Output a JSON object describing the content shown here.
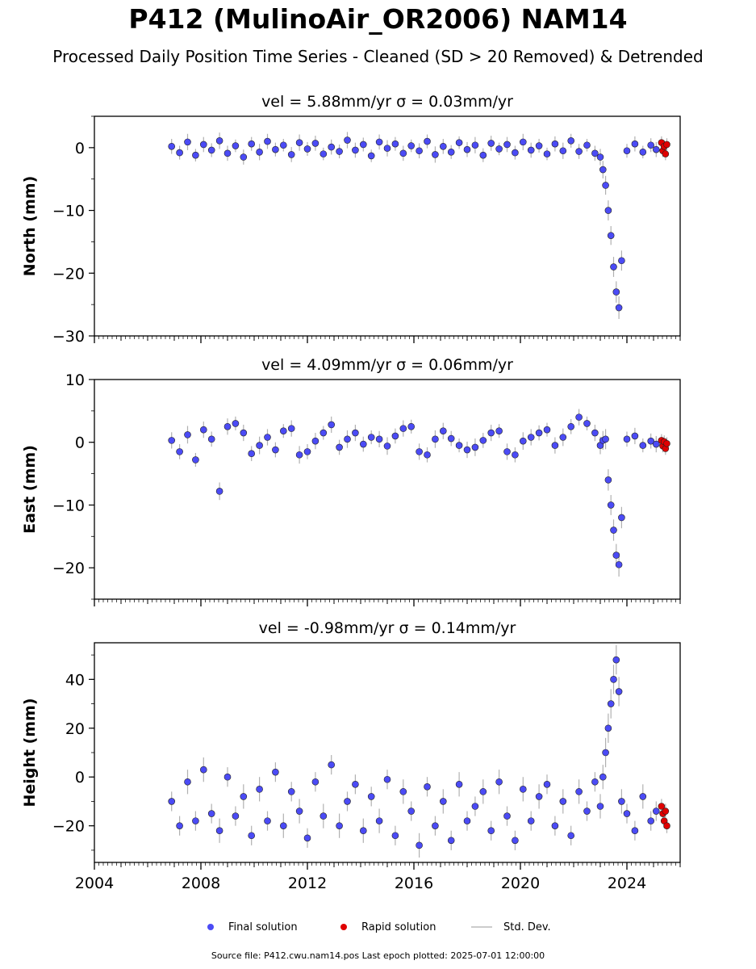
{
  "header": {
    "title": "P412 (MulinoAir_OR2006) NAM14",
    "subtitle": "Processed Daily Position Time Series - Cleaned (SD > 20 Removed) & Detrended"
  },
  "legend": {
    "final_label": "Final solution",
    "rapid_label": "Rapid solution",
    "std_label": "Std. Dev."
  },
  "footer": {
    "text": "Source file: P412.cwu.nam14.pos  Last epoch plotted: 2025-07-01 12:00:00"
  },
  "colors": {
    "final": "#4b4bf5",
    "rapid": "#e00000",
    "std": "#b0b0b0",
    "edge": "#222222"
  },
  "chart_data": [
    {
      "type": "scatter",
      "panel": "north",
      "title": "vel = 5.88mm/yr   σ = 0.03mm/yr",
      "ylabel": "North (mm)",
      "xlim": [
        2004,
        2026
      ],
      "ylim": [
        -30,
        5
      ],
      "yticks": [
        0,
        -10,
        -20,
        -30
      ],
      "ytick_labels": [
        "0",
        "−10",
        "−20",
        "−30"
      ],
      "xticks": [
        2004,
        2008,
        2012,
        2016,
        2020,
        2024
      ],
      "xtick_labels": [],
      "series": [
        {
          "kind": "final",
          "x": [
            2006.9,
            2007.2,
            2007.5,
            2007.8,
            2008.1,
            2008.4,
            2008.7,
            2009.0,
            2009.3,
            2009.6,
            2009.9,
            2010.2,
            2010.5,
            2010.8,
            2011.1,
            2011.4,
            2011.7,
            2012.0,
            2012.3,
            2012.6,
            2012.9,
            2013.2,
            2013.5,
            2013.8,
            2014.1,
            2014.4,
            2014.7,
            2015.0,
            2015.3,
            2015.6,
            2015.9,
            2016.2,
            2016.5,
            2016.8,
            2017.1,
            2017.4,
            2017.7,
            2018.0,
            2018.3,
            2018.6,
            2018.9,
            2019.2,
            2019.5,
            2019.8,
            2020.1,
            2020.4,
            2020.7,
            2021.0,
            2021.3,
            2021.6,
            2021.9,
            2022.2,
            2022.5,
            2022.8,
            2023.0,
            2023.1,
            2023.2,
            2023.3,
            2023.4,
            2023.5,
            2023.6,
            2023.7,
            2023.8,
            2024.0,
            2024.3,
            2024.6,
            2024.9,
            2025.1
          ],
          "y": [
            0.2,
            -0.8,
            0.9,
            -1.2,
            0.5,
            -0.4,
            1.1,
            -0.9,
            0.3,
            -1.5,
            0.6,
            -0.7,
            1.0,
            -0.3,
            0.4,
            -1.1,
            0.8,
            -0.2,
            0.7,
            -1.0,
            0.1,
            -0.6,
            1.2,
            -0.4,
            0.5,
            -1.3,
            0.9,
            -0.1,
            0.6,
            -0.9,
            0.3,
            -0.5,
            1.0,
            -1.1,
            0.2,
            -0.7,
            0.8,
            -0.3,
            0.4,
            -1.2,
            0.7,
            -0.2,
            0.5,
            -0.8,
            0.9,
            -0.4,
            0.3,
            -1.0,
            0.6,
            -0.5,
            1.1,
            -0.6,
            0.4,
            -0.9,
            -1.5,
            -3.5,
            -6.0,
            -10.0,
            -14.0,
            -19.0,
            -23.0,
            -25.5,
            -18.0,
            -0.5,
            0.6,
            -0.7,
            0.4,
            -0.3
          ],
          "sd": [
            1.2,
            1.1,
            1.3,
            1.0,
            1.2,
            1.1,
            1.3,
            1.2,
            1.0,
            1.2,
            1.1,
            1.3,
            1.2,
            1.1,
            1.0,
            1.2,
            1.3,
            1.1,
            1.2,
            1.0,
            1.2,
            1.1,
            1.3,
            1.2,
            1.1,
            1.0,
            1.2,
            1.3,
            1.1,
            1.2,
            1.0,
            1.2,
            1.1,
            1.3,
            1.2,
            1.1,
            1.0,
            1.2,
            1.3,
            1.1,
            1.2,
            1.0,
            1.2,
            1.1,
            1.3,
            1.2,
            1.1,
            1.0,
            1.2,
            1.3,
            1.1,
            1.2,
            1.0,
            1.2,
            1.3,
            1.4,
            1.5,
            1.6,
            1.5,
            1.6,
            1.7,
            1.8,
            1.6,
            1.1,
            1.2,
            1.0,
            1.1,
            1.2
          ]
        },
        {
          "kind": "rapid",
          "x": [
            2025.3,
            2025.35,
            2025.4,
            2025.45,
            2025.5
          ],
          "y": [
            0.8,
            -0.5,
            0.2,
            -1.0,
            0.5
          ],
          "sd": [
            1.0,
            1.0,
            1.0,
            1.0,
            1.0
          ]
        }
      ]
    },
    {
      "type": "scatter",
      "panel": "east",
      "title": "vel = 4.09mm/yr   σ = 0.06mm/yr",
      "ylabel": "East (mm)",
      "xlim": [
        2004,
        2026
      ],
      "ylim": [
        -25,
        10
      ],
      "yticks": [
        10,
        0,
        -10,
        -20
      ],
      "ytick_labels": [
        "10",
        "0",
        "−10",
        "−20"
      ],
      "xticks": [
        2004,
        2008,
        2012,
        2016,
        2020,
        2024
      ],
      "xtick_labels": [],
      "series": [
        {
          "kind": "final",
          "x": [
            2006.9,
            2007.2,
            2007.5,
            2007.8,
            2008.1,
            2008.4,
            2008.7,
            2009.0,
            2009.3,
            2009.6,
            2009.9,
            2010.2,
            2010.5,
            2010.8,
            2011.1,
            2011.4,
            2011.7,
            2012.0,
            2012.3,
            2012.6,
            2012.9,
            2013.2,
            2013.5,
            2013.8,
            2014.1,
            2014.4,
            2014.7,
            2015.0,
            2015.3,
            2015.6,
            2015.9,
            2016.2,
            2016.5,
            2016.8,
            2017.1,
            2017.4,
            2017.7,
            2018.0,
            2018.3,
            2018.6,
            2018.9,
            2019.2,
            2019.5,
            2019.8,
            2020.1,
            2020.4,
            2020.7,
            2021.0,
            2021.3,
            2021.6,
            2021.9,
            2022.2,
            2022.5,
            2022.8,
            2023.0,
            2023.1,
            2023.2,
            2023.3,
            2023.4,
            2023.5,
            2023.6,
            2023.7,
            2023.8,
            2024.0,
            2024.3,
            2024.6,
            2024.9,
            2025.1
          ],
          "y": [
            0.3,
            -1.5,
            1.2,
            -2.8,
            2.0,
            0.5,
            -7.8,
            2.5,
            3.0,
            1.5,
            -1.8,
            -0.5,
            0.8,
            -1.2,
            1.8,
            2.2,
            -2.0,
            -1.5,
            0.2,
            1.5,
            2.8,
            -0.8,
            0.5,
            1.5,
            -0.3,
            0.8,
            0.5,
            -0.6,
            1.0,
            2.2,
            2.5,
            -1.5,
            -2.0,
            0.5,
            1.8,
            0.6,
            -0.5,
            -1.2,
            -0.8,
            0.3,
            1.5,
            1.8,
            -1.5,
            -2.0,
            0.2,
            0.8,
            1.5,
            2.0,
            -0.5,
            0.8,
            2.5,
            4.0,
            3.0,
            1.5,
            -0.5,
            0.3,
            0.5,
            -6.0,
            -10.0,
            -14.0,
            -18.0,
            -19.5,
            -12.0,
            0.5,
            1.0,
            -0.5,
            0.2,
            -0.3
          ],
          "sd": [
            1.3,
            1.2,
            1.4,
            1.1,
            1.3,
            1.2,
            1.4,
            1.3,
            1.1,
            1.3,
            1.2,
            1.4,
            1.3,
            1.2,
            1.1,
            1.3,
            1.4,
            1.2,
            1.3,
            1.1,
            1.3,
            1.2,
            1.4,
            1.3,
            1.2,
            1.1,
            1.3,
            1.4,
            1.2,
            1.3,
            1.1,
            1.3,
            1.2,
            1.4,
            1.3,
            1.2,
            1.1,
            1.3,
            1.4,
            1.2,
            1.3,
            1.1,
            1.3,
            1.2,
            1.4,
            1.3,
            1.2,
            1.1,
            1.3,
            1.4,
            1.2,
            1.3,
            1.1,
            1.3,
            1.4,
            1.5,
            1.6,
            1.7,
            1.6,
            1.7,
            1.8,
            1.9,
            1.7,
            1.2,
            1.3,
            1.1,
            1.2,
            1.3
          ]
        },
        {
          "kind": "rapid",
          "x": [
            2025.3,
            2025.35,
            2025.4,
            2025.45,
            2025.5
          ],
          "y": [
            0.3,
            -0.6,
            0.1,
            -1.0,
            -0.2
          ],
          "sd": [
            1.0,
            1.0,
            1.0,
            1.0,
            1.0
          ]
        }
      ]
    },
    {
      "type": "scatter",
      "panel": "height",
      "title": "vel = -0.98mm/yr   σ = 0.14mm/yr",
      "ylabel": "Height (mm)",
      "xlim": [
        2004,
        2026
      ],
      "ylim": [
        -35,
        55
      ],
      "yticks": [
        40,
        20,
        0,
        -20
      ],
      "ytick_labels": [
        "40",
        "20",
        "0",
        "−20"
      ],
      "xticks": [
        2004,
        2008,
        2012,
        2016,
        2020,
        2024
      ],
      "xtick_labels": [
        "2004",
        "2008",
        "2012",
        "2016",
        "2020",
        "2024"
      ],
      "series": [
        {
          "kind": "final",
          "x": [
            2006.9,
            2007.2,
            2007.5,
            2007.8,
            2008.1,
            2008.4,
            2008.7,
            2009.0,
            2009.3,
            2009.6,
            2009.9,
            2010.2,
            2010.5,
            2010.8,
            2011.1,
            2011.4,
            2011.7,
            2012.0,
            2012.3,
            2012.6,
            2012.9,
            2013.2,
            2013.5,
            2013.8,
            2014.1,
            2014.4,
            2014.7,
            2015.0,
            2015.3,
            2015.6,
            2015.9,
            2016.2,
            2016.5,
            2016.8,
            2017.1,
            2017.4,
            2017.7,
            2018.0,
            2018.3,
            2018.6,
            2018.9,
            2019.2,
            2019.5,
            2019.8,
            2020.1,
            2020.4,
            2020.7,
            2021.0,
            2021.3,
            2021.6,
            2021.9,
            2022.2,
            2022.5,
            2022.8,
            2023.0,
            2023.1,
            2023.2,
            2023.3,
            2023.4,
            2023.5,
            2023.6,
            2023.7,
            2023.8,
            2024.0,
            2024.3,
            2024.6,
            2024.9,
            2025.1
          ],
          "y": [
            -10,
            -20,
            -2,
            -18,
            3,
            -15,
            -22,
            0,
            -16,
            -8,
            -24,
            -5,
            -18,
            2,
            -20,
            -6,
            -14,
            -25,
            -2,
            -16,
            5,
            -20,
            -10,
            -3,
            -22,
            -8,
            -18,
            -1,
            -24,
            -6,
            -14,
            -28,
            -4,
            -20,
            -10,
            -26,
            -3,
            -18,
            -12,
            -6,
            -22,
            -2,
            -16,
            -26,
            -5,
            -18,
            -8,
            -3,
            -20,
            -10,
            -24,
            -6,
            -14,
            -2,
            -12,
            0,
            10,
            20,
            30,
            40,
            48,
            35,
            -10,
            -15,
            -22,
            -8,
            -18,
            -14
          ],
          "sd": [
            4,
            4,
            5,
            4,
            5,
            4,
            5,
            4,
            4,
            5,
            4,
            5,
            4,
            4,
            5,
            4,
            5,
            4,
            4,
            5,
            4,
            5,
            4,
            4,
            5,
            4,
            5,
            4,
            4,
            5,
            4,
            5,
            4,
            4,
            5,
            4,
            5,
            4,
            4,
            5,
            4,
            5,
            4,
            4,
            5,
            4,
            5,
            4,
            4,
            5,
            4,
            5,
            4,
            4,
            5,
            5,
            6,
            6,
            6,
            6,
            6,
            6,
            5,
            4,
            4,
            5,
            4,
            4
          ]
        },
        {
          "kind": "rapid",
          "x": [
            2025.3,
            2025.35,
            2025.4,
            2025.45,
            2025.5
          ],
          "y": [
            -12,
            -15,
            -18,
            -14,
            -20
          ],
          "sd": [
            3,
            3,
            3,
            3,
            3
          ]
        }
      ]
    }
  ]
}
